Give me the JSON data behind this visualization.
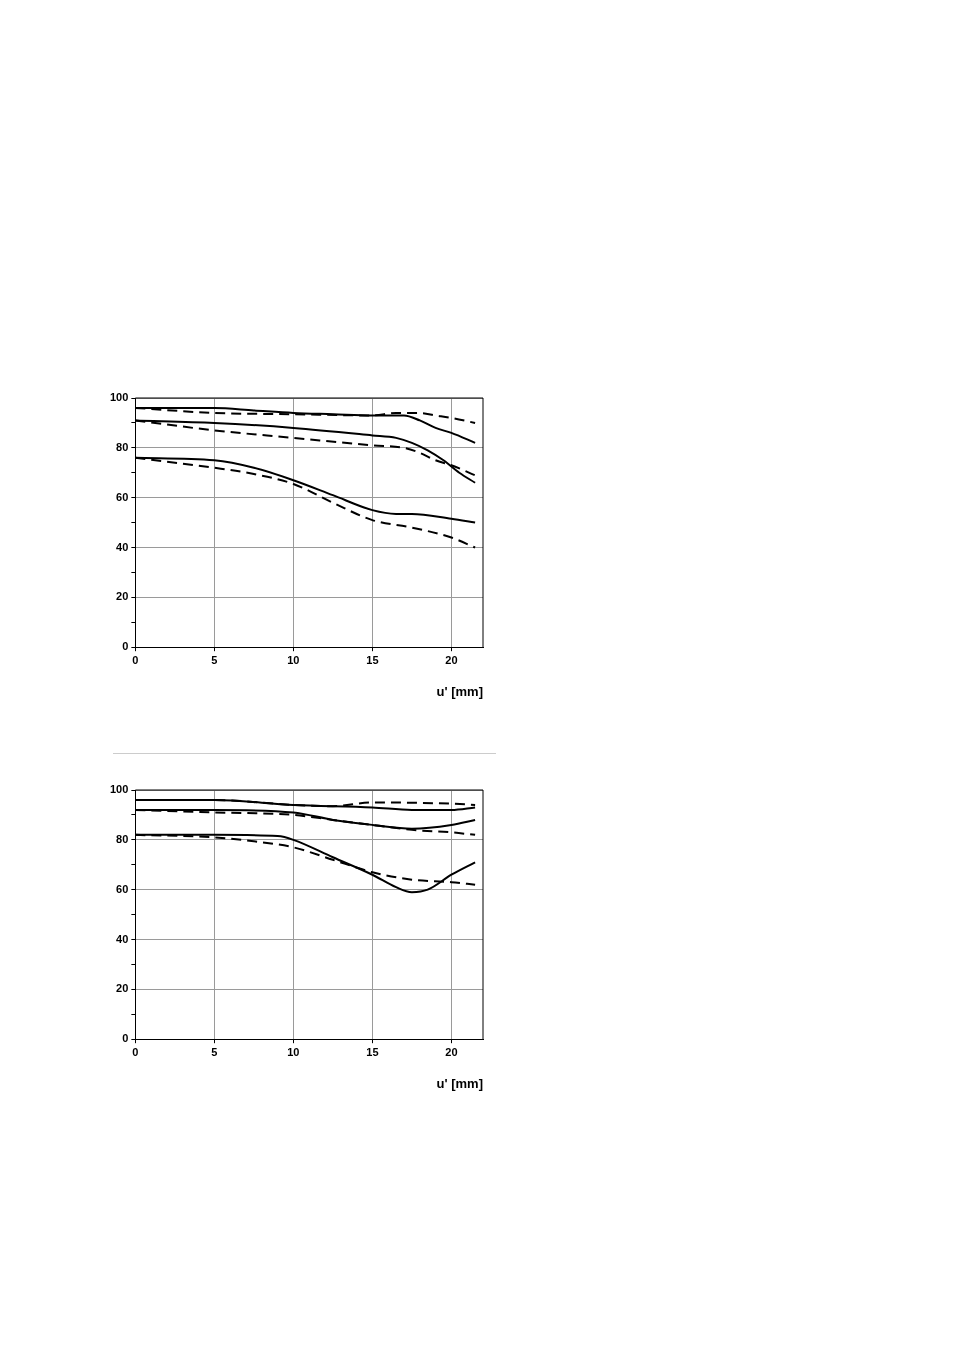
{
  "chart_data": [
    {
      "type": "line",
      "xlabel": "u' [mm]",
      "xlim": [
        0,
        22
      ],
      "xticks": [
        0,
        5,
        10,
        15,
        20
      ],
      "ylim": [
        0,
        100
      ],
      "yticks": [
        0,
        {
          "value": 10,
          "label": null
        },
        20,
        {
          "value": 30,
          "label": null
        },
        40,
        {
          "value": 50,
          "label": null
        },
        60,
        {
          "value": 70,
          "label": null
        },
        80,
        {
          "value": 90,
          "label": null
        },
        100
      ],
      "grid": true,
      "legend": false,
      "marker": "none",
      "series": [
        {
          "color": "#000000",
          "line_style": "solid",
          "x": [
            0,
            5,
            7.5,
            10,
            12.5,
            15,
            17,
            18,
            19,
            20,
            21.5
          ],
          "values": [
            96,
            96,
            95,
            94,
            93.5,
            93,
            93,
            91,
            88,
            86,
            82
          ]
        },
        {
          "color": "#000000",
          "line_style": "dashed",
          "x": [
            0,
            5,
            10,
            15,
            16.5,
            18,
            19,
            20,
            21.5
          ],
          "values": [
            96,
            94,
            93.5,
            93,
            94,
            94,
            93,
            92,
            90
          ]
        },
        {
          "color": "#000000",
          "line_style": "solid",
          "x": [
            0,
            5,
            10,
            15,
            16.5,
            17.5,
            18.5,
            19.5,
            20.5,
            21.5
          ],
          "values": [
            91,
            90,
            88,
            85,
            84,
            82,
            79,
            75,
            70,
            66
          ]
        },
        {
          "color": "#000000",
          "line_style": "dashed",
          "x": [
            0,
            5,
            10,
            15,
            17,
            18,
            19,
            20,
            21.5
          ],
          "values": [
            91,
            87,
            84,
            81,
            80,
            78,
            75,
            73,
            69
          ]
        },
        {
          "color": "#000000",
          "line_style": "solid",
          "x": [
            0,
            5,
            7.5,
            10,
            12.5,
            15,
            16.5,
            17.5,
            20,
            21.5
          ],
          "values": [
            76,
            75,
            72,
            67,
            61,
            55,
            53.5,
            53.5,
            51.5,
            50
          ]
        },
        {
          "color": "#000000",
          "line_style": "dashed",
          "x": [
            0,
            5,
            7.5,
            10,
            12.5,
            15,
            17.5,
            20,
            21.5
          ],
          "values": [
            76,
            72,
            69.5,
            65.5,
            58,
            51,
            48,
            44,
            40
          ]
        }
      ]
    },
    {
      "type": "line",
      "xlabel": "u' [mm]",
      "xlim": [
        0,
        22
      ],
      "xticks": [
        0,
        5,
        10,
        15,
        20
      ],
      "ylim": [
        0,
        100
      ],
      "yticks": [
        0,
        {
          "value": 10,
          "label": null
        },
        20,
        {
          "value": 30,
          "label": null
        },
        40,
        {
          "value": 50,
          "label": null
        },
        60,
        {
          "value": 70,
          "label": null
        },
        80,
        {
          "value": 90,
          "label": null
        },
        100
      ],
      "grid": true,
      "legend": false,
      "marker": "none",
      "series": [
        {
          "color": "#000000",
          "line_style": "solid",
          "x": [
            0,
            5,
            10,
            15,
            17.5,
            20,
            21.5
          ],
          "values": [
            96,
            96,
            94,
            93,
            92,
            92,
            93
          ]
        },
        {
          "color": "#000000",
          "line_style": "dashed",
          "x": [
            0,
            5,
            10,
            12.5,
            15,
            20,
            21.5
          ],
          "values": [
            96,
            96,
            94,
            93.5,
            95,
            94.5,
            94
          ]
        },
        {
          "color": "#000000",
          "line_style": "solid",
          "x": [
            0,
            5,
            10,
            12.5,
            15,
            17.5,
            20,
            21.5
          ],
          "values": [
            92,
            92,
            91,
            88,
            86,
            84.5,
            86,
            88
          ]
        },
        {
          "color": "#000000",
          "line_style": "dashed",
          "x": [
            0,
            5,
            10,
            12.5,
            15,
            17.5,
            20,
            21.5
          ],
          "values": [
            92,
            91,
            90,
            88,
            86,
            84,
            83,
            82
          ]
        },
        {
          "color": "#000000",
          "line_style": "solid",
          "x": [
            0,
            5,
            9,
            10,
            12.5,
            15,
            16.5,
            17.5,
            18.5,
            20,
            21.5
          ],
          "values": [
            82,
            82,
            81.5,
            80,
            73,
            66,
            61,
            59,
            60,
            66,
            71
          ]
        },
        {
          "color": "#000000",
          "line_style": "dashed",
          "x": [
            0,
            5,
            8,
            10,
            12.5,
            15,
            17.5,
            20,
            21.5
          ],
          "values": [
            82,
            81,
            79,
            77,
            72,
            67,
            64,
            63,
            62
          ]
        }
      ]
    }
  ]
}
